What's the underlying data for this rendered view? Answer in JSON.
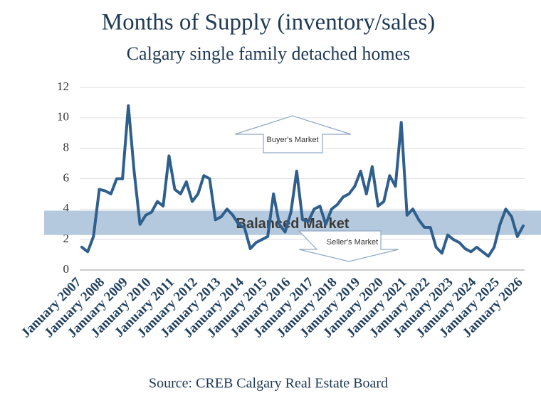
{
  "chart_data": {
    "type": "line",
    "title": "Months of Supply (inventory/sales)",
    "subtitle": "Calgary single family detached homes",
    "source": "Source: CREB Calgary Real Estate Board",
    "categories": [
      "January 2007",
      null,
      null,
      null,
      "January 2008",
      null,
      null,
      null,
      "January 2009",
      null,
      null,
      null,
      "January 2010",
      null,
      null,
      null,
      "January 2011",
      null,
      null,
      null,
      "January 2012",
      null,
      null,
      null,
      "January 2013",
      null,
      null,
      null,
      "January 2014",
      null,
      null,
      null,
      "January 2015",
      null,
      null,
      null,
      "January 2016",
      null,
      null,
      null,
      "January 2017",
      null,
      null,
      null,
      "January 2018",
      null,
      null,
      null,
      "January 2019",
      null,
      null,
      null,
      "January 2020",
      null,
      null,
      null,
      "January 2021",
      null,
      null,
      null,
      "January 2022",
      null,
      null,
      null,
      "January 2023",
      null,
      null,
      null,
      "January 2024",
      null,
      null,
      null,
      "January 2025",
      null,
      null,
      null,
      "January 2026"
    ],
    "values": [
      1.5,
      1.2,
      2.2,
      5.3,
      5.2,
      5.0,
      6.0,
      6.0,
      10.8,
      6.5,
      3.0,
      3.6,
      3.8,
      4.5,
      4.2,
      7.5,
      5.3,
      5.0,
      5.8,
      4.5,
      5.0,
      6.2,
      6.0,
      3.3,
      3.5,
      4.0,
      3.6,
      3.0,
      2.8,
      1.4,
      1.8,
      2.0,
      2.2,
      5.0,
      3.0,
      2.5,
      3.8,
      6.5,
      3.3,
      3.2,
      4.0,
      4.2,
      3.0,
      4.0,
      4.3,
      4.8,
      5.0,
      5.5,
      6.5,
      5.0,
      6.8,
      4.2,
      4.5,
      6.2,
      5.5,
      9.7,
      3.6,
      4.0,
      3.3,
      2.8,
      2.8,
      1.5,
      1.1,
      2.3,
      2.0,
      1.8,
      1.4,
      1.2,
      1.5,
      1.2,
      0.9,
      1.5,
      3.0,
      4.0,
      3.5,
      2.2,
      2.9
    ],
    "color": "#2f5f8c",
    "ylim": [
      0,
      12
    ],
    "yticks": [
      0,
      2,
      4,
      6,
      8,
      10,
      12
    ],
    "grid": true,
    "band": {
      "label": "Balanced Market",
      "range": [
        2.3,
        3.9
      ],
      "color": "#a7bfd8"
    },
    "annotations": [
      "Buyer's Market",
      "Seller's Market"
    ]
  }
}
